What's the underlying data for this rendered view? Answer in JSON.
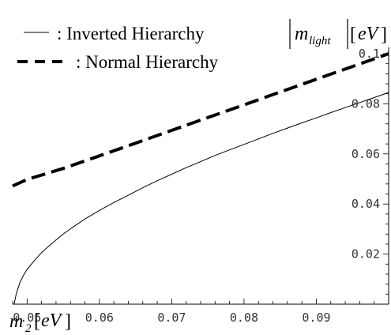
{
  "chart_data": {
    "type": "line",
    "xlim": [
      0.048,
      0.1
    ],
    "ylim": [
      0,
      0.1
    ],
    "x_ticks": [
      0.05,
      0.06,
      0.07,
      0.08,
      0.09
    ],
    "x_tick_labels": [
      "0.05",
      "0.06",
      "0.07",
      "0.08",
      "0.09"
    ],
    "y_ticks": [
      0.02,
      0.04,
      0.06,
      0.08,
      0.1
    ],
    "y_tick_labels": [
      "0.02",
      "0.04",
      "0.06",
      "0.08",
      "0.1"
    ],
    "xlabel": {
      "main": "m",
      "sub": "2",
      "unit": "eV"
    },
    "ylabel": {
      "main": "m",
      "sub": "light",
      "unit": "eV"
    },
    "grid": false,
    "legend_position": "top-left",
    "series": [
      {
        "name": ": Inverted Hierarchy",
        "style": "solid",
        "color": "#000000",
        "x": [
          0.0482,
          0.0485,
          0.049,
          0.0495,
          0.05,
          0.051,
          0.052,
          0.053,
          0.054,
          0.055,
          0.056,
          0.058,
          0.06,
          0.062,
          0.064,
          0.066,
          0.068,
          0.07,
          0.072,
          0.074,
          0.076,
          0.078,
          0.08,
          0.082,
          0.084,
          0.086,
          0.088,
          0.09,
          0.092,
          0.094,
          0.096,
          0.098,
          0.1
        ],
        "y": [
          0.0,
          0.0042,
          0.0086,
          0.0115,
          0.0139,
          0.0174,
          0.0206,
          0.0232,
          0.0256,
          0.028,
          0.0301,
          0.034,
          0.0374,
          0.0406,
          0.0435,
          0.0465,
          0.0493,
          0.0519,
          0.0545,
          0.0569,
          0.0594,
          0.0616,
          0.0638,
          0.066,
          0.0682,
          0.0703,
          0.0724,
          0.0744,
          0.0765,
          0.0785,
          0.0805,
          0.0825,
          0.0845
        ]
      },
      {
        "name": ": Normal Hierarchy",
        "style": "dashed",
        "color": "#000000",
        "x": [
          0.048,
          0.05,
          0.055,
          0.06,
          0.065,
          0.07,
          0.075,
          0.08,
          0.085,
          0.09,
          0.095,
          0.1
        ],
        "y": [
          0.0472,
          0.0498,
          0.0542,
          0.0592,
          0.0643,
          0.0694,
          0.0745,
          0.0796,
          0.0847,
          0.0898,
          0.0949,
          0.1
        ]
      }
    ]
  }
}
